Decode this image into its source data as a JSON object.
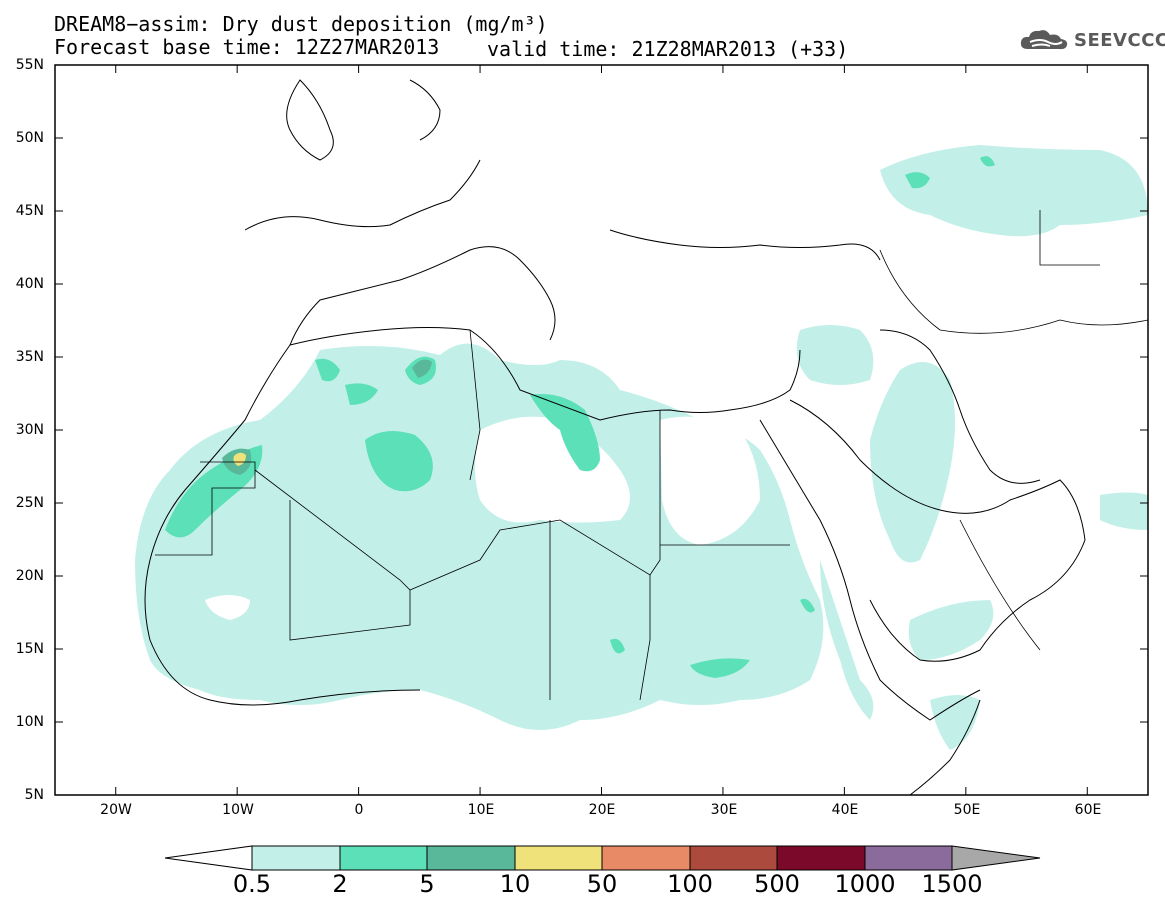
{
  "title_line1": "DREAM8−assim: Dry dust deposition (mg/m³)",
  "title_line2_left": "Forecast base time: 12Z27MAR2013",
  "title_line2_right": "valid time: 21Z28MAR2013 (+33)",
  "logo": {
    "text": "SEEVCCC",
    "icon": "cloud-logo-icon",
    "color": "#5a5a5a"
  },
  "map": {
    "lon_range": [
      -25,
      65
    ],
    "lat_range": [
      5,
      55
    ],
    "lat_ticks": [
      "55N",
      "50N",
      "45N",
      "40N",
      "35N",
      "30N",
      "25N",
      "20N",
      "15N",
      "10N",
      "5N"
    ],
    "lon_ticks": [
      "20W",
      "10W",
      "0",
      "10E",
      "20E",
      "30E",
      "40E",
      "50E",
      "60E"
    ]
  },
  "colorbar": {
    "labels": [
      "0.5",
      "2",
      "5",
      "10",
      "50",
      "100",
      "500",
      "1000",
      "1500"
    ],
    "colors": [
      "#c2f0e9",
      "#5ce0b7",
      "#5ab89a",
      "#f0e27a",
      "#e88a66",
      "#ad4a3e",
      "#7b0a2a",
      "#8a6b9c",
      "#a8a8a8"
    ]
  }
}
